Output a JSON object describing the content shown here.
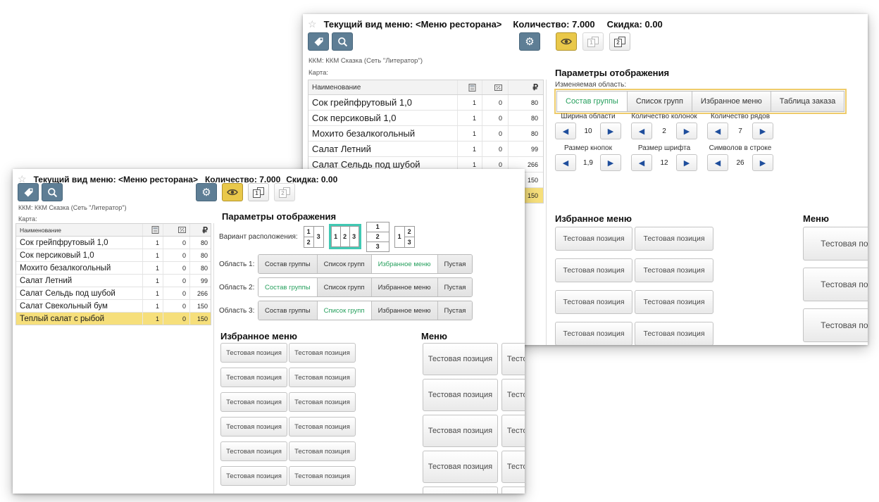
{
  "colors": {
    "accent_blue_gray": "#5e7e95",
    "accent_yellow": "#e9c84a",
    "selected_green": "#27a05e",
    "selected_teal": "#41c9b4",
    "highlight_row": "#f6df7b",
    "tab_group_border": "#eecb6a",
    "stepper_arrow_blue": "#1f4e9c"
  },
  "icons": {
    "star": "☆",
    "gear": "⚙",
    "ruble": "₽",
    "arrow_left": "◀",
    "arrow_right": "▶"
  },
  "window": {
    "title": "Текущий вид меню: <Меню ресторана>",
    "quantity": "Количество: 7.000",
    "discount": "Скидка: 0.00",
    "kkm_line": "ККМ:  ККМ Сказка (Сеть \"Литератор\")",
    "card_label": "Карта:",
    "params_heading": "Параметры отображения",
    "favorites_heading": "Избранное меню",
    "menu_heading": "Меню",
    "test_position_label": "Тестовая позиция"
  },
  "table": {
    "name_header": "Наименование",
    "column_icons": [
      "quantity-icon",
      "discount-icon",
      "price-ruble-icon"
    ],
    "rows": [
      {
        "name": "Сок грейпфрутовый 1,0",
        "qty": "1",
        "discount": "0",
        "price": "80",
        "highlighted": false
      },
      {
        "name": "Сок персиковый 1,0",
        "qty": "1",
        "discount": "0",
        "price": "80",
        "highlighted": false
      },
      {
        "name": "Мохито безалкогольный",
        "qty": "1",
        "discount": "0",
        "price": "80",
        "highlighted": false
      },
      {
        "name": "Салат Летний",
        "qty": "1",
        "discount": "0",
        "price": "99",
        "highlighted": false
      },
      {
        "name": "Салат Сельдь под шубой",
        "qty": "1",
        "discount": "0",
        "price": "266",
        "highlighted": false
      },
      {
        "name": "Салат Свекольный бум",
        "qty": "1",
        "discount": "0",
        "price": "150",
        "highlighted": false
      },
      {
        "name": "Теплый салат с рыбой",
        "qty": "1",
        "discount": "0",
        "price": "150",
        "highlighted": true
      }
    ]
  },
  "back_window": {
    "pages": [
      {
        "digit": "1",
        "active": false
      },
      {
        "digit": "2",
        "active": true
      }
    ],
    "editable_area_label": "Изменяемая область:",
    "area_tabs": [
      "Состав группы",
      "Список групп",
      "Избранное меню",
      "Таблица заказа"
    ],
    "selected_tab_index": 0,
    "steppers_row1": [
      {
        "label": "Ширина области",
        "value": "10"
      },
      {
        "label": "Количество колонок",
        "value": "2"
      },
      {
        "label": "Количество рядов",
        "value": "7"
      }
    ],
    "steppers_row2": [
      {
        "label": "Размер кнопок",
        "value": "1,9"
      },
      {
        "label": "Размер шрифта",
        "value": "12"
      },
      {
        "label": "Символов в строке",
        "value": "26"
      }
    ],
    "favorites_count": 8,
    "menu_count": 4
  },
  "front_window": {
    "pages": [
      {
        "digit": "1",
        "active": true
      },
      {
        "digit": "2",
        "active": false
      }
    ],
    "layout_variant_label": "Вариант расположения:",
    "layout_variants": [
      {
        "cells": [
          "1",
          "2",
          "3"
        ],
        "arrangement": "stack-left",
        "selected": false
      },
      {
        "cells": [
          "1",
          "2",
          "3"
        ],
        "arrangement": "columns",
        "selected": true
      },
      {
        "cells": [
          "1",
          "2",
          "3"
        ],
        "arrangement": "rows",
        "selected": false
      },
      {
        "cells": [
          "1",
          "2",
          "3"
        ],
        "arrangement": "stack-right",
        "selected": false
      }
    ],
    "area_options": [
      "Состав группы",
      "Список групп",
      "Избранное меню",
      "Пустая"
    ],
    "areas": [
      {
        "label": "Область 1:",
        "selected_index": 2
      },
      {
        "label": "Область 2:",
        "selected_index": 0
      },
      {
        "label": "Область 3:",
        "selected_index": 1
      }
    ],
    "favorites_count": 12,
    "menu_count": 10
  }
}
